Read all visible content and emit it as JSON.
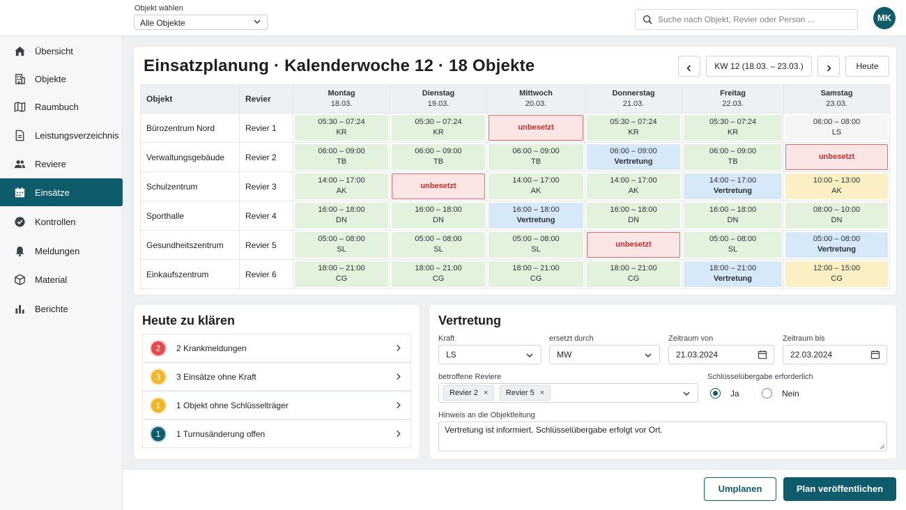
{
  "topbar": {
    "object_label": "Objekt wählen",
    "object_value": "Alle Objekte",
    "search_placeholder": "Suche nach Objekt, Revier oder Person ...",
    "avatar_initials": "MK"
  },
  "sidebar": {
    "items": [
      {
        "label": "Übersicht",
        "icon": "home-icon"
      },
      {
        "label": "Objekte",
        "icon": "building-icon"
      },
      {
        "label": "Raumbuch",
        "icon": "map-icon"
      },
      {
        "label": "Leistungsverzeichnis",
        "icon": "document-icon"
      },
      {
        "label": "Reviere",
        "icon": "people-icon"
      },
      {
        "label": "Einsätze",
        "icon": "calendar-icon",
        "active": true
      },
      {
        "label": "Kontrollen",
        "icon": "check-circle-icon"
      },
      {
        "label": "Meldungen",
        "icon": "bell-icon"
      },
      {
        "label": "Material",
        "icon": "box-icon"
      },
      {
        "label": "Berichte",
        "icon": "bar-chart-icon"
      }
    ]
  },
  "plan": {
    "title": "Einsatzplanung · Kalenderwoche 12 · 18 Objekte",
    "week_label": "KW 12 (18.03. – 23.03.)",
    "today_label": "Heute",
    "col_object": "Objekt",
    "col_revier": "Revier",
    "days": [
      {
        "name": "Montag",
        "date": "18.03."
      },
      {
        "name": "Dienstag",
        "date": "19.03."
      },
      {
        "name": "Mittwoch",
        "date": "20.03."
      },
      {
        "name": "Donnerstag",
        "date": "21.03."
      },
      {
        "name": "Freitag",
        "date": "22.03."
      },
      {
        "name": "Samstag",
        "date": "23.03."
      }
    ],
    "rows": [
      {
        "object": "Bürozentrum Nord",
        "revier": "Revier 1",
        "cells": [
          {
            "time": "05:30 – 07:24",
            "who": "KR",
            "status": "green"
          },
          {
            "time": "05:30 – 07:24",
            "who": "KR",
            "status": "green"
          },
          {
            "time": "",
            "who": "unbesetzt",
            "status": "red"
          },
          {
            "time": "05:30 – 07:24",
            "who": "KR",
            "status": "green"
          },
          {
            "time": "05:30 – 07:24",
            "who": "KR",
            "status": "green"
          },
          {
            "time": "06:00 – 08:00",
            "who": "LS",
            "status": "neutral"
          }
        ]
      },
      {
        "object": "Verwaltungsgebäude",
        "revier": "Revier 2",
        "cells": [
          {
            "time": "06:00 – 09:00",
            "who": "TB",
            "status": "green"
          },
          {
            "time": "06:00 – 09:00",
            "who": "TB",
            "status": "green"
          },
          {
            "time": "06:00 – 09:00",
            "who": "TB",
            "status": "green"
          },
          {
            "time": "06:00 – 09:00",
            "who": "Vertretung",
            "status": "blue"
          },
          {
            "time": "06:00 – 09:00",
            "who": "TB",
            "status": "green"
          },
          {
            "time": "",
            "who": "unbesetzt",
            "status": "red"
          }
        ]
      },
      {
        "object": "Schulzentrum",
        "revier": "Revier 3",
        "cells": [
          {
            "time": "14:00 – 17:00",
            "who": "AK",
            "status": "green"
          },
          {
            "time": "",
            "who": "unbesetzt",
            "status": "red"
          },
          {
            "time": "14:00 – 17:00",
            "who": "AK",
            "status": "green"
          },
          {
            "time": "14:00 – 17:00",
            "who": "AK",
            "status": "green"
          },
          {
            "time": "14:00 – 17:00",
            "who": "Vertretung",
            "status": "blue"
          },
          {
            "time": "10:00 – 13:00",
            "who": "AK",
            "status": "yellow"
          }
        ]
      },
      {
        "object": "Sporthalle",
        "revier": "Revier 4",
        "cells": [
          {
            "time": "16:00 – 18:00",
            "who": "DN",
            "status": "green"
          },
          {
            "time": "16:00 – 18:00",
            "who": "DN",
            "status": "green"
          },
          {
            "time": "16:00 – 18:00",
            "who": "Vertretung",
            "status": "blue"
          },
          {
            "time": "16:00 – 18:00",
            "who": "DN",
            "status": "green"
          },
          {
            "time": "16:00 – 18:00",
            "who": "DN",
            "status": "green"
          },
          {
            "time": "08:00 – 10:00",
            "who": "DN",
            "status": "green"
          }
        ]
      },
      {
        "object": "Gesundheitszentrum",
        "revier": "Revier 5",
        "cells": [
          {
            "time": "05:00 – 08:00",
            "who": "SL",
            "status": "green"
          },
          {
            "time": "05:00 – 08:00",
            "who": "SL",
            "status": "green"
          },
          {
            "time": "05:00 – 08:00",
            "who": "SL",
            "status": "green"
          },
          {
            "time": "",
            "who": "unbesetzt",
            "status": "red"
          },
          {
            "time": "05:00 – 08:00",
            "who": "SL",
            "status": "green"
          },
          {
            "time": "05:00 – 08:00",
            "who": "Vertretung",
            "status": "blue"
          }
        ]
      },
      {
        "object": "Einkaufszentrum",
        "revier": "Revier 6",
        "cells": [
          {
            "time": "18:00 – 21:00",
            "who": "CG",
            "status": "green"
          },
          {
            "time": "18:00 – 21:00",
            "who": "CG",
            "status": "green"
          },
          {
            "time": "18:00 – 21:00",
            "who": "CG",
            "status": "green"
          },
          {
            "time": "18:00 – 21:00",
            "who": "CG",
            "status": "green"
          },
          {
            "time": "18:00 – 21:00",
            "who": "Vertretung",
            "status": "blue"
          },
          {
            "time": "12:00 – 15:00",
            "who": "CG",
            "status": "yellow"
          }
        ]
      }
    ]
  },
  "klaeren": {
    "title": "Heute zu klären",
    "items": [
      {
        "count": "2",
        "label": "2 Krankmeldungen",
        "color": "red"
      },
      {
        "count": "3",
        "label": "3 Einsätze ohne Kraft",
        "color": "yellow"
      },
      {
        "count": "1",
        "label": "1 Objekt ohne Schlüsselträger",
        "color": "yellow"
      },
      {
        "count": "1",
        "label": "1 Turnusänderung offen",
        "color": "teal"
      }
    ]
  },
  "vertretung": {
    "title": "Vertretung",
    "kraft_label": "Kraft",
    "kraft_value": "LS",
    "ersetzt_label": "ersetzt durch",
    "ersetzt_value": "MW",
    "von_label": "Zeitraum von",
    "von_value": "21.03.2024",
    "bis_label": "Zeitraum bis",
    "bis_value": "22.03.2024",
    "reviere_label": "betroffene Reviere",
    "reviere": [
      "Revier 2",
      "Revier 5"
    ],
    "schluessel_label": "Schlüsselübergabe erforderlich",
    "ja_label": "Ja",
    "nein_label": "Nein",
    "schluessel_selected": "Ja",
    "hinweis_label": "Hinweis an die Objektleitung",
    "hinweis_value": "Vertretung ist informiert. Schlüsselübergabe erfolgt vor Ort."
  },
  "footer": {
    "umplanen_label": "Umplanen",
    "publish_label": "Plan veröffentlichen"
  },
  "colors": {
    "accent": "#0e5b6b",
    "green_cell": "#e2f2dd",
    "blue_cell": "#d7e9f8",
    "yellow_cell": "#fbf0c4",
    "red_cell": "#fbe5e5",
    "red_text": "#c0302f"
  }
}
